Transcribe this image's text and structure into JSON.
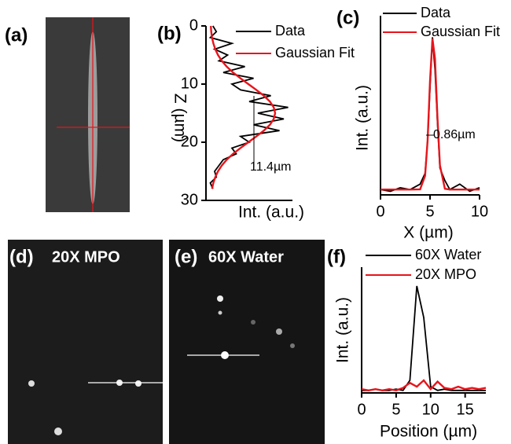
{
  "panel_labels": [
    "(a)",
    "(b)",
    "(c)",
    "(d)",
    "(e)",
    "(f)"
  ],
  "images": [
    {
      "label": "20X MPO"
    },
    {
      "label": "60X Water"
    }
  ],
  "chart_data": [
    {
      "type": "line",
      "orientation": "vertical",
      "x_label": "Z (µm)",
      "y_label": "Int. (a.u.)",
      "annotation": "11.4µm",
      "x": [
        0,
        1,
        2,
        3,
        4,
        5,
        6,
        7,
        8,
        9,
        10,
        11,
        12,
        13,
        14,
        15,
        16,
        17,
        18,
        19,
        20,
        21,
        22,
        23,
        24,
        25,
        26,
        27,
        28
      ],
      "xlim": [
        0,
        30
      ],
      "xticks": [
        0,
        10,
        20,
        30
      ],
      "ylim": [
        0,
        1
      ],
      "series": [
        {
          "name": "Data",
          "color": "#000000",
          "values": [
            0.08,
            0.12,
            0.05,
            0.3,
            0.1,
            0.25,
            0.15,
            0.45,
            0.2,
            0.55,
            0.3,
            0.4,
            0.75,
            0.5,
            0.95,
            0.6,
            0.9,
            0.55,
            0.85,
            0.4,
            0.5,
            0.3,
            0.35,
            0.2,
            0.15,
            0.1,
            0.12,
            0.05,
            0.08
          ]
        },
        {
          "name": "Gaussian Fit",
          "color": "#e8141b",
          "values": [
            0.056,
            0.061,
            0.07,
            0.085,
            0.107,
            0.139,
            0.183,
            0.24,
            0.313,
            0.398,
            0.49,
            0.583,
            0.669,
            0.739,
            0.784,
            0.8,
            0.784,
            0.739,
            0.669,
            0.583,
            0.49,
            0.398,
            0.313,
            0.24,
            0.183,
            0.139,
            0.107,
            0.085,
            0.07
          ]
        }
      ]
    },
    {
      "type": "line",
      "x_label": "X (µm)",
      "y_label": "Int. (a.u.)",
      "annotation": "0.86µm",
      "x": [
        0,
        1,
        2,
        3,
        4,
        4.5,
        4.75,
        5,
        5.25,
        5.5,
        5.75,
        6,
        6.5,
        7,
        8,
        9,
        10
      ],
      "xlim": [
        0,
        10
      ],
      "xticks": [
        0,
        5,
        10
      ],
      "ylim": [
        0,
        1
      ],
      "series": [
        {
          "name": "Data",
          "color": "#000000",
          "values": [
            0.03,
            0.02,
            0.04,
            0.03,
            0.06,
            0.12,
            0.3,
            0.6,
            0.88,
            0.7,
            0.4,
            0.15,
            0.08,
            0.03,
            0.06,
            0.02,
            0.04
          ]
        },
        {
          "name": "Gaussian Fit",
          "color": "#e8141b",
          "values": [
            0.03,
            0.03,
            0.03,
            0.03,
            0.031,
            0.106,
            0.302,
            0.636,
            0.872,
            0.76,
            0.427,
            0.165,
            0.034,
            0.03,
            0.03,
            0.03,
            0.03
          ]
        }
      ]
    },
    {
      "type": "line",
      "x_label": "Position (µm)",
      "y_label": "Int. (a.u.)",
      "x": [
        0,
        1,
        2,
        3,
        4,
        5,
        6,
        7,
        8,
        9,
        10,
        11,
        12,
        13,
        14,
        15,
        16,
        17,
        18
      ],
      "xlim": [
        0,
        18
      ],
      "xticks": [
        0,
        5,
        10,
        15
      ],
      "ylim": [
        0,
        1
      ],
      "series": [
        {
          "name": "60X Water",
          "color": "#000000",
          "values": [
            0.02,
            0.02,
            0.03,
            0.02,
            0.02,
            0.03,
            0.02,
            0.1,
            0.85,
            0.6,
            0.05,
            0.02,
            0.03,
            0.02,
            0.02,
            0.02,
            0.02,
            0.02,
            0.02
          ]
        },
        {
          "name": "20X MPO",
          "color": "#e8141b",
          "values": [
            0.03,
            0.02,
            0.03,
            0.02,
            0.03,
            0.02,
            0.04,
            0.08,
            0.05,
            0.1,
            0.03,
            0.09,
            0.04,
            0.03,
            0.05,
            0.03,
            0.04,
            0.03,
            0.04
          ]
        }
      ]
    }
  ]
}
